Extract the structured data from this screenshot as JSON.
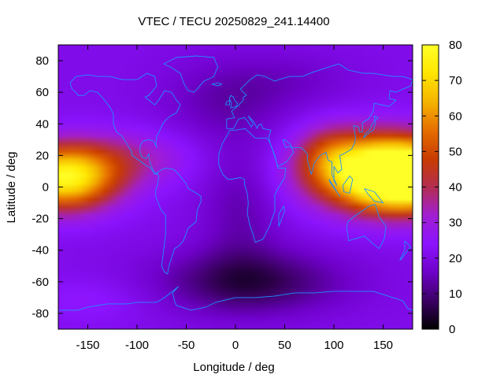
{
  "chart_data": {
    "type": "heatmap",
    "title": "VTEC / TECU 20250829_241.14400",
    "xlabel": "Longitude / deg",
    "ylabel": "Latitude / deg",
    "xlim": [
      -180,
      180
    ],
    "ylim": [
      -90,
      90
    ],
    "x_ticks": [
      -150,
      -100,
      -50,
      0,
      50,
      100,
      150
    ],
    "y_ticks": [
      -80,
      -60,
      -40,
      -20,
      0,
      20,
      40,
      60,
      80
    ],
    "colorbar": {
      "range": [
        0,
        80
      ],
      "ticks": [
        0,
        10,
        20,
        30,
        40,
        50,
        60,
        70,
        80
      ],
      "palette": [
        "#000000",
        "#3c0064",
        "#6e00c8",
        "#8c14ff",
        "#a01ed2",
        "#b42d50",
        "#c83c00",
        "#e66e00",
        "#f5b400",
        "#ffe600",
        "#ffff28"
      ]
    },
    "field_components": [
      {
        "kind": "background",
        "value": 21
      },
      {
        "kind": "peak",
        "lon": -175,
        "lat": 6,
        "sigma_lon": 38,
        "sigma_lat": 14,
        "amplitude": 56
      },
      {
        "kind": "peak",
        "lon": 180,
        "lat": 6,
        "sigma_lon": 38,
        "sigma_lat": 14,
        "amplitude": 56
      },
      {
        "kind": "peak",
        "lon": 142,
        "lat": 10,
        "sigma_lon": 48,
        "sigma_lat": 16,
        "amplitude": 57
      },
      {
        "kind": "peak",
        "lon": 95,
        "lat": 22,
        "sigma_lon": 22,
        "sigma_lat": 12,
        "amplitude": 12
      },
      {
        "kind": "peak",
        "lon": -110,
        "lat": 18,
        "sigma_lon": 45,
        "sigma_lat": 12,
        "amplitude": 12
      },
      {
        "kind": "trough",
        "lon": 15,
        "lat": -60,
        "sigma_lon": 65,
        "sigma_lat": 14,
        "amplitude": -15
      },
      {
        "kind": "trough",
        "lon": 5,
        "lat": -15,
        "sigma_lon": 28,
        "sigma_lat": 30,
        "amplitude": -7
      },
      {
        "kind": "trough",
        "lon": -10,
        "lat": 55,
        "sigma_lon": 45,
        "sigma_lat": 18,
        "amplitude": -7
      },
      {
        "kind": "trough",
        "lon": 60,
        "lat": 68,
        "sigma_lon": 45,
        "sigma_lat": 12,
        "amplitude": -4
      },
      {
        "kind": "peak",
        "lon": -150,
        "lat": -72,
        "sigma_lon": 45,
        "sigma_lat": 10,
        "amplitude": 4
      }
    ],
    "coastline_color": "#1e90ff",
    "coastlines": {
      "north_america": [
        [
          -168,
          66
        ],
        [
          -162,
          70
        ],
        [
          -150,
          71
        ],
        [
          -140,
          70
        ],
        [
          -128,
          70
        ],
        [
          -115,
          68
        ],
        [
          -100,
          68
        ],
        [
          -90,
          72
        ],
        [
          -82,
          70
        ],
        [
          -80,
          64
        ],
        [
          -88,
          58
        ],
        [
          -92,
          57
        ],
        [
          -82,
          52
        ],
        [
          -78,
          55
        ],
        [
          -72,
          61
        ],
        [
          -65,
          60
        ],
        [
          -60,
          55
        ],
        [
          -56,
          52
        ],
        [
          -60,
          47
        ],
        [
          -66,
          45
        ],
        [
          -70,
          43
        ],
        [
          -74,
          40
        ],
        [
          -76,
          37
        ],
        [
          -80,
          32
        ],
        [
          -81,
          27
        ],
        [
          -80,
          25
        ],
        [
          -83,
          29
        ],
        [
          -88,
          30
        ],
        [
          -94,
          29
        ],
        [
          -97,
          26
        ],
        [
          -97,
          22
        ],
        [
          -95,
          19
        ],
        [
          -91,
          18
        ],
        [
          -88,
          21
        ],
        [
          -87,
          16
        ],
        [
          -84,
          11
        ],
        [
          -80,
          8
        ],
        [
          -79,
          9
        ],
        [
          -82,
          8
        ],
        [
          -86,
          12
        ],
        [
          -92,
          14
        ],
        [
          -96,
          16
        ],
        [
          -105,
          20
        ],
        [
          -106,
          23
        ],
        [
          -112,
          29
        ],
        [
          -115,
          32
        ],
        [
          -117,
          33
        ],
        [
          -121,
          35
        ],
        [
          -124,
          40
        ],
        [
          -124,
          46
        ],
        [
          -127,
          50
        ],
        [
          -133,
          55
        ],
        [
          -140,
          60
        ],
        [
          -148,
          61
        ],
        [
          -154,
          58
        ],
        [
          -160,
          58
        ],
        [
          -162,
          60
        ],
        [
          -166,
          62
        ],
        [
          -168,
          66
        ]
      ],
      "greenland": [
        [
          -73,
          78
        ],
        [
          -60,
          82
        ],
        [
          -40,
          83
        ],
        [
          -22,
          82
        ],
        [
          -18,
          76
        ],
        [
          -22,
          70
        ],
        [
          -32,
          67
        ],
        [
          -42,
          60
        ],
        [
          -48,
          61
        ],
        [
          -52,
          65
        ],
        [
          -56,
          72
        ],
        [
          -66,
          76
        ],
        [
          -73,
          78
        ]
      ],
      "south_america": [
        [
          -80,
          9
        ],
        [
          -75,
          11
        ],
        [
          -70,
          12
        ],
        [
          -62,
          11
        ],
        [
          -55,
          6
        ],
        [
          -50,
          2
        ],
        [
          -48,
          -1
        ],
        [
          -42,
          -3
        ],
        [
          -35,
          -6
        ],
        [
          -35,
          -9
        ],
        [
          -39,
          -15
        ],
        [
          -40,
          -22
        ],
        [
          -48,
          -26
        ],
        [
          -53,
          -34
        ],
        [
          -57,
          -37
        ],
        [
          -62,
          -39
        ],
        [
          -65,
          -45
        ],
        [
          -68,
          -51
        ],
        [
          -69,
          -55
        ],
        [
          -72,
          -54
        ],
        [
          -75,
          -50
        ],
        [
          -73,
          -40
        ],
        [
          -71,
          -30
        ],
        [
          -71,
          -18
        ],
        [
          -76,
          -14
        ],
        [
          -81,
          -6
        ],
        [
          -81,
          -2
        ],
        [
          -79,
          2
        ],
        [
          -78,
          7
        ],
        [
          -80,
          9
        ]
      ],
      "africa": [
        [
          -17,
          21
        ],
        [
          -13,
          28
        ],
        [
          -9,
          32
        ],
        [
          -6,
          36
        ],
        [
          0,
          36
        ],
        [
          10,
          37
        ],
        [
          20,
          31
        ],
        [
          32,
          31
        ],
        [
          35,
          28
        ],
        [
          40,
          20
        ],
        [
          43,
          12
        ],
        [
          51,
          12
        ],
        [
          50,
          6
        ],
        [
          43,
          -1
        ],
        [
          40,
          -5
        ],
        [
          40,
          -15
        ],
        [
          35,
          -24
        ],
        [
          32,
          -28
        ],
        [
          28,
          -33
        ],
        [
          20,
          -35
        ],
        [
          18,
          -30
        ],
        [
          15,
          -25
        ],
        [
          12,
          -17
        ],
        [
          13,
          -10
        ],
        [
          12,
          -4
        ],
        [
          9,
          2
        ],
        [
          9,
          5
        ],
        [
          5,
          6
        ],
        [
          -4,
          5
        ],
        [
          -8,
          5
        ],
        [
          -13,
          8
        ],
        [
          -17,
          14
        ],
        [
          -17,
          21
        ]
      ],
      "eurasia": [
        [
          -9,
          37
        ],
        [
          -9,
          43
        ],
        [
          -1,
          44
        ],
        [
          -4,
          48
        ],
        [
          2,
          51
        ],
        [
          5,
          53
        ],
        [
          8,
          55
        ],
        [
          8,
          57
        ],
        [
          11,
          58
        ],
        [
          5,
          62
        ],
        [
          15,
          68
        ],
        [
          22,
          71
        ],
        [
          30,
          70
        ],
        [
          40,
          67
        ],
        [
          44,
          68
        ],
        [
          55,
          70
        ],
        [
          68,
          70
        ],
        [
          80,
          73
        ],
        [
          95,
          76
        ],
        [
          105,
          78
        ],
        [
          115,
          74
        ],
        [
          130,
          72
        ],
        [
          140,
          72
        ],
        [
          150,
          71
        ],
        [
          160,
          70
        ],
        [
          170,
          70
        ],
        [
          180,
          68
        ],
        [
          178,
          64
        ],
        [
          170,
          62
        ],
        [
          163,
          60
        ],
        [
          157,
          61
        ],
        [
          156,
          56
        ],
        [
          163,
          55
        ],
        [
          160,
          53
        ],
        [
          156,
          51
        ],
        [
          141,
          53
        ],
        [
          140,
          48
        ],
        [
          135,
          43
        ],
        [
          129,
          41
        ],
        [
          129,
          35
        ],
        [
          126,
          35
        ],
        [
          125,
          38
        ],
        [
          120,
          39
        ],
        [
          122,
          31
        ],
        [
          121,
          28
        ],
        [
          118,
          24
        ],
        [
          110,
          21
        ],
        [
          106,
          20
        ],
        [
          108,
          11
        ],
        [
          104,
          9
        ],
        [
          100,
          13
        ],
        [
          100,
          4
        ],
        [
          103,
          1
        ],
        [
          98,
          8
        ],
        [
          98,
          16
        ],
        [
          94,
          17
        ],
        [
          92,
          22
        ],
        [
          86,
          20
        ],
        [
          80,
          15
        ],
        [
          77,
          8
        ],
        [
          73,
          17
        ],
        [
          73,
          21
        ],
        [
          67,
          25
        ],
        [
          57,
          25
        ],
        [
          56,
          27
        ],
        [
          50,
          30
        ],
        [
          48,
          30
        ],
        [
          51,
          25
        ],
        [
          56,
          26
        ],
        [
          59,
          22
        ],
        [
          52,
          16
        ],
        [
          43,
          13
        ],
        [
          39,
          21
        ],
        [
          35,
          28
        ],
        [
          34,
          32
        ],
        [
          36,
          36
        ],
        [
          28,
          37
        ],
        [
          26,
          40
        ],
        [
          23,
          39
        ],
        [
          22,
          37
        ],
        [
          19,
          41
        ],
        [
          13,
          45
        ],
        [
          18,
          40
        ],
        [
          16,
          38
        ],
        [
          12,
          42
        ],
        [
          9,
          44
        ],
        [
          3,
          43
        ],
        [
          -2,
          37
        ],
        [
          -9,
          37
        ]
      ],
      "britain": [
        [
          -5,
          50
        ],
        [
          1,
          51
        ],
        [
          2,
          53
        ],
        [
          -1,
          55
        ],
        [
          -2,
          57
        ],
        [
          -5,
          58
        ],
        [
          -6,
          56
        ],
        [
          -4,
          53
        ],
        [
          -5,
          50
        ]
      ],
      "ireland": [
        [
          -10,
          52
        ],
        [
          -6,
          52
        ],
        [
          -6,
          55
        ],
        [
          -9,
          54
        ],
        [
          -10,
          52
        ]
      ],
      "iceland": [
        [
          -24,
          65
        ],
        [
          -18,
          66
        ],
        [
          -14,
          65
        ],
        [
          -18,
          64
        ],
        [
          -24,
          65
        ]
      ],
      "japan": [
        [
          130,
          31
        ],
        [
          135,
          34
        ],
        [
          140,
          36
        ],
        [
          142,
          40
        ],
        [
          141,
          45
        ],
        [
          145,
          44
        ],
        [
          140,
          41
        ],
        [
          136,
          36
        ],
        [
          132,
          34
        ],
        [
          130,
          31
        ]
      ],
      "sumatra": [
        [
          95,
          5
        ],
        [
          106,
          -6
        ],
        [
          104,
          -4
        ],
        [
          96,
          3
        ],
        [
          95,
          5
        ]
      ],
      "borneo": [
        [
          109,
          1
        ],
        [
          116,
          7
        ],
        [
          119,
          5
        ],
        [
          116,
          -4
        ],
        [
          110,
          -3
        ],
        [
          109,
          1
        ]
      ],
      "new_guinea": [
        [
          131,
          -1
        ],
        [
          141,
          -3
        ],
        [
          150,
          -10
        ],
        [
          141,
          -9
        ],
        [
          134,
          -4
        ],
        [
          131,
          -1
        ]
      ],
      "australia": [
        [
          114,
          -22
        ],
        [
          122,
          -18
        ],
        [
          129,
          -15
        ],
        [
          136,
          -12
        ],
        [
          142,
          -11
        ],
        [
          146,
          -19
        ],
        [
          153,
          -25
        ],
        [
          151,
          -33
        ],
        [
          146,
          -39
        ],
        [
          138,
          -35
        ],
        [
          131,
          -31
        ],
        [
          115,
          -34
        ],
        [
          113,
          -26
        ],
        [
          114,
          -22
        ]
      ],
      "new_zealand": [
        [
          172,
          -34
        ],
        [
          178,
          -38
        ],
        [
          174,
          -41
        ],
        [
          168,
          -46
        ],
        [
          167,
          -46
        ],
        [
          172,
          -40
        ],
        [
          172,
          -34
        ]
      ],
      "madagascar": [
        [
          44,
          -25
        ],
        [
          50,
          -15
        ],
        [
          49,
          -12
        ],
        [
          44,
          -17
        ],
        [
          44,
          -25
        ]
      ],
      "antarctica": [
        [
          -180,
          -78
        ],
        [
          -160,
          -78
        ],
        [
          -150,
          -76
        ],
        [
          -130,
          -74
        ],
        [
          -110,
          -74
        ],
        [
          -100,
          -73
        ],
        [
          -80,
          -73
        ],
        [
          -72,
          -70
        ],
        [
          -62,
          -65
        ],
        [
          -58,
          -63
        ],
        [
          -64,
          -67
        ],
        [
          -62,
          -72
        ],
        [
          -60,
          -75
        ],
        [
          -45,
          -78
        ],
        [
          -30,
          -76
        ],
        [
          -20,
          -73
        ],
        [
          0,
          -70
        ],
        [
          20,
          -70
        ],
        [
          40,
          -69
        ],
        [
          60,
          -67
        ],
        [
          80,
          -67
        ],
        [
          100,
          -66
        ],
        [
          120,
          -66
        ],
        [
          140,
          -66
        ],
        [
          160,
          -70
        ],
        [
          170,
          -72
        ],
        [
          175,
          -77
        ],
        [
          180,
          -78
        ]
      ]
    }
  }
}
